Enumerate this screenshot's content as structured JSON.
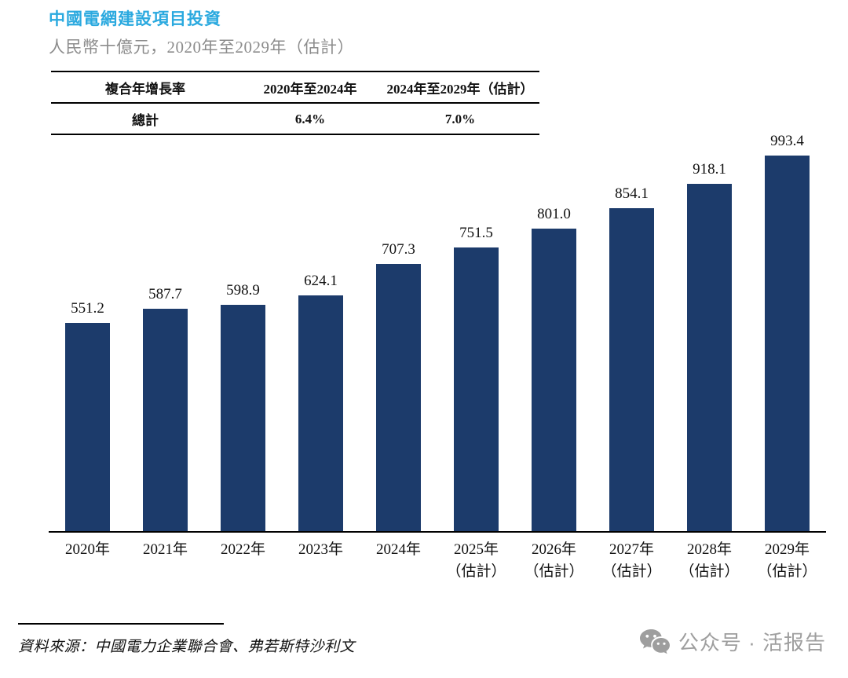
{
  "page": {
    "title": "中國電網建設項目投資",
    "subtitle": "人民幣十億元，2020年至2029年（估計）",
    "source": "資料來源：中國電力企業聯合會、弗若斯特沙利文",
    "watermark_text": "公众号 · 活报告"
  },
  "table": {
    "col1_header": "複合年增長率",
    "col2_header": "2020年至2024年",
    "col3_header": "2024年至2029年（估計）",
    "row_label": "總計",
    "cagr_2020_2024": "6.4%",
    "cagr_2024_2029": "7.0%"
  },
  "chart_data": {
    "type": "bar",
    "title": "中國電網建設項目投資",
    "unit_label": "人民幣十億元",
    "categories": [
      "2020年",
      "2021年",
      "2022年",
      "2023年",
      "2024年",
      "2025年\n（估計）",
      "2026年\n（估計）",
      "2027年\n（估計）",
      "2028年\n（估計）",
      "2029年\n（估計）"
    ],
    "values": [
      551.2,
      587.7,
      598.9,
      624.1,
      707.3,
      751.5,
      801.0,
      854.1,
      918.1,
      993.4
    ],
    "bar_color": "#1C3B6B",
    "ylim": [
      0,
      1050
    ],
    "grid": false,
    "value_labels": true,
    "legend": "none"
  },
  "colors": {
    "title_accent": "#2AA9DF",
    "subtitle_gray": "#8C8C8C",
    "axis_black": "#000000",
    "watermark_gray": "#9E9E9E"
  }
}
